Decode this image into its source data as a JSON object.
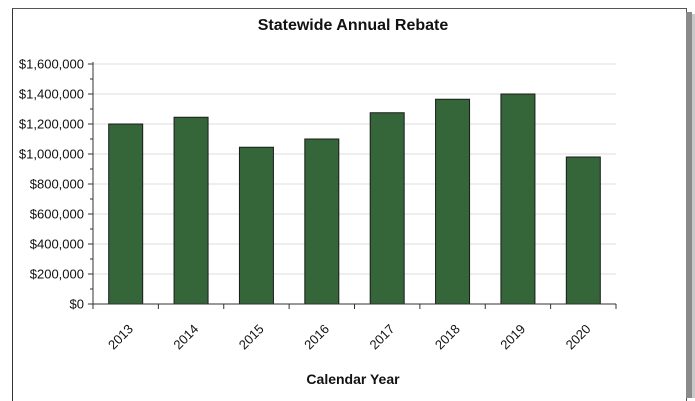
{
  "chart_data": {
    "type": "bar",
    "title": "Statewide Annual Rebate",
    "xlabel": "Calendar Year",
    "ylabel": "",
    "categories": [
      "2013",
      "2014",
      "2015",
      "2016",
      "2017",
      "2018",
      "2019",
      "2020"
    ],
    "values": [
      1200000,
      1245000,
      1045000,
      1100000,
      1275000,
      1365000,
      1400000,
      980000
    ],
    "ylim": [
      0,
      1600000
    ],
    "yticks": [
      0,
      200000,
      400000,
      600000,
      800000,
      1000000,
      1200000,
      1400000,
      1600000
    ],
    "ytick_labels": [
      "$0",
      "$200,000",
      "$400,000",
      "$600,000",
      "$800,000",
      "$1,000,000",
      "$1,200,000",
      "$1,400,000",
      "$1,600,000"
    ],
    "bar_color": "#35663a",
    "grid": true,
    "legend": "none"
  }
}
